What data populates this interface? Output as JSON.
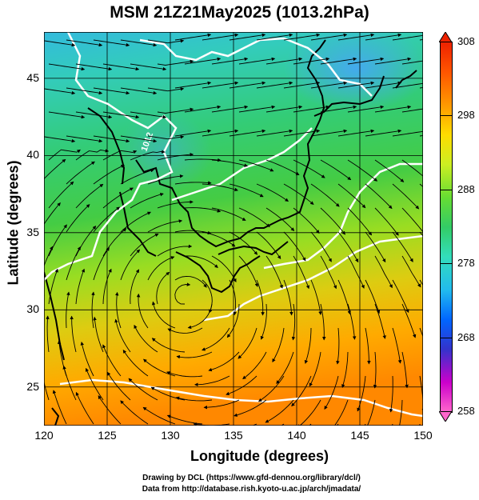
{
  "title": "MSM 21Z21May2025 (1013.2hPa)",
  "map": {
    "xlabel": "Longitude (degrees)",
    "ylabel": "Latitude  (degrees)",
    "xlim": [
      120,
      150
    ],
    "ylim": [
      22.5,
      48
    ],
    "xticks": [
      "120",
      "125",
      "130",
      "135",
      "140",
      "145",
      "150"
    ],
    "yticks": [
      "25",
      "30",
      "35",
      "40",
      "45"
    ],
    "contour_label": "1012"
  },
  "colorbar": {
    "min": 258,
    "max": 308,
    "ticks": [
      "308",
      "298",
      "288",
      "278",
      "268",
      "258"
    ],
    "colors": [
      "#ff66cc",
      "#cc00cc",
      "#3333cc",
      "#0066ff",
      "#22bbee",
      "#33ddbb",
      "#33cc66",
      "#66dd33",
      "#ccee22",
      "#ffdd00",
      "#ff9900",
      "#ff5500",
      "#ee2200"
    ]
  },
  "credits": {
    "line1": "Drawing by DCL (https://www.gfd-dennou.org/library/dcl/)",
    "line2": "Data from http://database.rish.kyoto-u.ac.jp/arch/jmadata/"
  }
}
